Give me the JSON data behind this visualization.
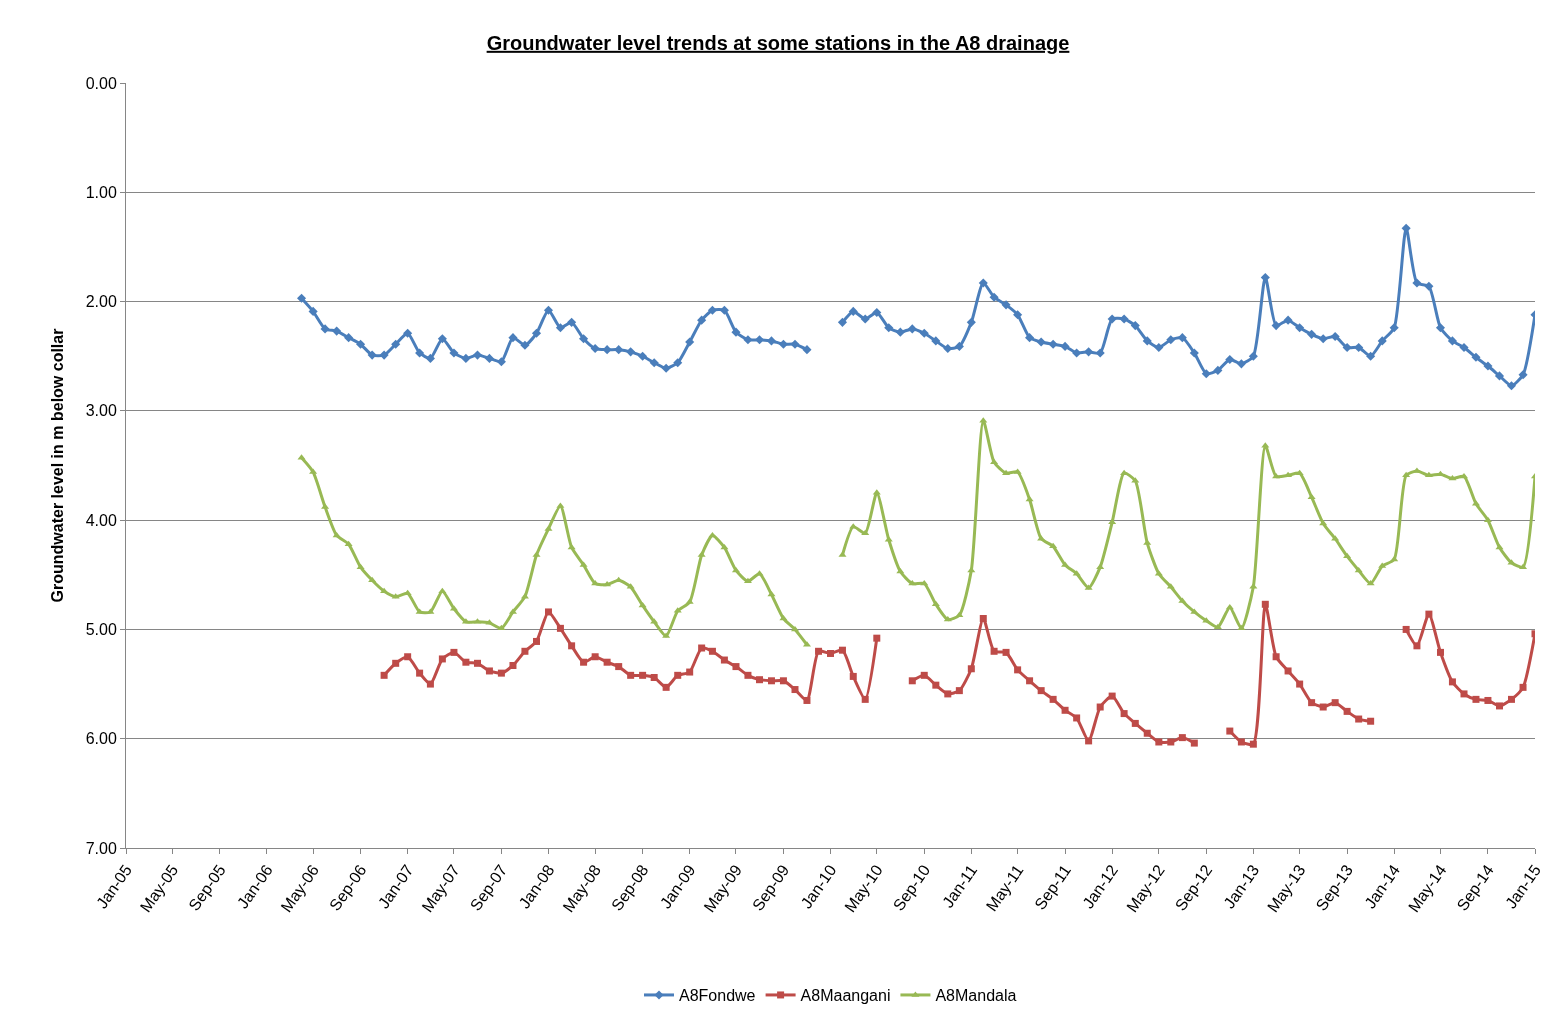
{
  "chart_data": {
    "type": "line",
    "title": "Groundwater level trends at some stations in the A8 drainage",
    "ylabel": "Groundwater level in m below collar",
    "x": [
      "2006-04",
      "2006-05",
      "2006-06",
      "2006-07",
      "2006-08",
      "2006-09",
      "2006-10",
      "2006-11",
      "2006-12",
      "2007-01",
      "2007-02",
      "2007-03",
      "2007-04",
      "2007-05",
      "2007-06",
      "2007-07",
      "2007-08",
      "2007-09",
      "2007-10",
      "2007-11",
      "2007-12",
      "2008-01",
      "2008-02",
      "2008-03",
      "2008-04",
      "2008-05",
      "2008-06",
      "2008-07",
      "2008-08",
      "2008-09",
      "2008-10",
      "2008-11",
      "2008-12",
      "2009-01",
      "2009-02",
      "2009-03",
      "2009-04",
      "2009-05",
      "2009-06",
      "2009-07",
      "2009-08",
      "2009-09",
      "2009-10",
      "2009-11",
      "2009-12",
      "2010-01",
      "2010-02",
      "2010-03",
      "2010-04",
      "2010-05",
      "2010-06",
      "2010-07",
      "2010-08",
      "2010-09",
      "2010-10",
      "2010-11",
      "2010-12",
      "2011-01",
      "2011-02",
      "2011-03",
      "2011-04",
      "2011-05",
      "2011-06",
      "2011-07",
      "2011-08",
      "2011-09",
      "2011-10",
      "2011-11",
      "2011-12",
      "2012-01",
      "2012-02",
      "2012-03",
      "2012-04",
      "2012-05",
      "2012-06",
      "2012-07",
      "2012-08",
      "2012-09",
      "2012-10",
      "2012-11",
      "2012-12",
      "2013-01",
      "2013-02",
      "2013-03",
      "2013-04",
      "2013-05",
      "2013-06",
      "2013-07",
      "2013-08",
      "2013-09",
      "2013-10",
      "2013-11",
      "2013-12",
      "2014-01",
      "2014-02",
      "2014-03",
      "2014-04",
      "2014-05",
      "2014-06",
      "2014-07",
      "2014-08",
      "2014-09",
      "2014-10",
      "2014-11",
      "2014-12",
      "2015-01"
    ],
    "series": [
      {
        "name": "A8Fondwe",
        "color": "#4a7ebb",
        "marker": "diamond",
        "values": [
          1.97,
          2.09,
          2.25,
          2.27,
          2.33,
          2.39,
          2.49,
          2.49,
          2.39,
          2.29,
          2.47,
          2.52,
          2.34,
          2.47,
          2.52,
          2.49,
          2.52,
          2.55,
          2.33,
          2.4,
          2.29,
          2.08,
          2.24,
          2.19,
          2.34,
          2.43,
          2.44,
          2.44,
          2.46,
          2.5,
          2.56,
          2.61,
          2.56,
          2.37,
          2.17,
          2.08,
          2.08,
          2.28,
          2.35,
          2.35,
          2.36,
          2.39,
          2.39,
          2.44,
          null,
          null,
          2.19,
          2.09,
          2.16,
          2.1,
          2.24,
          2.28,
          2.25,
          2.29,
          2.36,
          2.43,
          2.41,
          2.19,
          1.83,
          1.96,
          2.03,
          2.12,
          2.33,
          2.37,
          2.39,
          2.41,
          2.47,
          2.46,
          2.47,
          2.16,
          2.16,
          2.22,
          2.36,
          2.42,
          2.35,
          2.33,
          2.47,
          2.66,
          2.63,
          2.53,
          2.57,
          2.5,
          1.78,
          2.22,
          2.17,
          2.24,
          2.3,
          2.34,
          2.32,
          2.42,
          2.42,
          2.5,
          2.36,
          2.24,
          1.33,
          1.83,
          1.86,
          2.24,
          2.36,
          2.42,
          2.51,
          2.59,
          2.68,
          2.77,
          2.67,
          2.12
        ]
      },
      {
        "name": "A8Maangani",
        "color": "#be4b48",
        "marker": "square",
        "values": [
          null,
          null,
          null,
          null,
          null,
          null,
          null,
          5.42,
          5.31,
          5.25,
          5.4,
          5.5,
          5.27,
          5.21,
          5.3,
          5.31,
          5.38,
          5.4,
          5.33,
          5.2,
          5.11,
          4.84,
          4.99,
          5.15,
          5.3,
          5.25,
          5.3,
          5.34,
          5.42,
          5.42,
          5.44,
          5.53,
          5.42,
          5.39,
          5.17,
          5.2,
          5.28,
          5.34,
          5.42,
          5.46,
          5.47,
          5.47,
          5.55,
          5.65,
          5.2,
          5.22,
          5.19,
          5.43,
          5.64,
          5.08,
          null,
          null,
          5.47,
          5.42,
          5.51,
          5.59,
          5.56,
          5.36,
          4.9,
          5.2,
          5.21,
          5.37,
          5.47,
          5.56,
          5.64,
          5.74,
          5.81,
          6.02,
          5.71,
          5.61,
          5.77,
          5.86,
          5.95,
          6.03,
          6.03,
          5.99,
          6.04,
          null,
          null,
          5.93,
          6.03,
          6.05,
          4.77,
          5.25,
          5.38,
          5.5,
          5.67,
          5.71,
          5.67,
          5.75,
          5.82,
          5.84,
          null,
          null,
          5.0,
          5.15,
          4.86,
          5.21,
          5.48,
          5.59,
          5.64,
          5.65,
          5.7,
          5.64,
          5.53,
          5.04
        ]
      },
      {
        "name": "A8Mandala",
        "color": "#98b954",
        "marker": "triangle",
        "values": [
          3.43,
          3.56,
          3.88,
          4.14,
          4.22,
          4.43,
          4.55,
          4.65,
          4.7,
          4.67,
          4.84,
          4.84,
          4.65,
          4.81,
          4.93,
          4.93,
          4.94,
          4.99,
          4.84,
          4.7,
          4.32,
          4.08,
          3.87,
          4.25,
          4.41,
          4.58,
          4.59,
          4.55,
          4.61,
          4.78,
          4.93,
          5.06,
          4.83,
          4.75,
          4.32,
          4.14,
          4.25,
          4.46,
          4.56,
          4.49,
          4.68,
          4.9,
          5.0,
          5.14,
          null,
          null,
          4.32,
          4.06,
          4.12,
          3.75,
          4.18,
          4.47,
          4.58,
          4.58,
          4.77,
          4.91,
          4.87,
          4.46,
          3.09,
          3.47,
          3.57,
          3.56,
          3.81,
          4.17,
          4.24,
          4.41,
          4.49,
          4.62,
          4.43,
          4.02,
          3.57,
          3.64,
          4.21,
          4.49,
          4.61,
          4.74,
          4.84,
          4.92,
          4.98,
          4.8,
          4.99,
          4.61,
          3.32,
          3.6,
          3.59,
          3.57,
          3.79,
          4.03,
          4.17,
          4.33,
          4.46,
          4.58,
          4.42,
          4.36,
          3.59,
          3.55,
          3.59,
          3.58,
          3.62,
          3.6,
          3.85,
          4.0,
          4.25,
          4.39,
          4.43,
          3.6
        ]
      }
    ],
    "xlim": [
      "2005-01",
      "2015-01"
    ],
    "xticks": [
      {
        "value": "2005-01",
        "label": "Jan-05"
      },
      {
        "value": "2005-05",
        "label": "May-05"
      },
      {
        "value": "2005-09",
        "label": "Sep-05"
      },
      {
        "value": "2006-01",
        "label": "Jan-06"
      },
      {
        "value": "2006-05",
        "label": "May-06"
      },
      {
        "value": "2006-09",
        "label": "Sep-06"
      },
      {
        "value": "2007-01",
        "label": "Jan-07"
      },
      {
        "value": "2007-05",
        "label": "May-07"
      },
      {
        "value": "2007-09",
        "label": "Sep-07"
      },
      {
        "value": "2008-01",
        "label": "Jan-08"
      },
      {
        "value": "2008-05",
        "label": "May-08"
      },
      {
        "value": "2008-09",
        "label": "Sep-08"
      },
      {
        "value": "2009-01",
        "label": "Jan-09"
      },
      {
        "value": "2009-05",
        "label": "May-09"
      },
      {
        "value": "2009-09",
        "label": "Sep-09"
      },
      {
        "value": "2010-01",
        "label": "Jan-10"
      },
      {
        "value": "2010-05",
        "label": "May-10"
      },
      {
        "value": "2010-09",
        "label": "Sep-10"
      },
      {
        "value": "2011-01",
        "label": "Jan-11"
      },
      {
        "value": "2011-05",
        "label": "May-11"
      },
      {
        "value": "2011-09",
        "label": "Sep-11"
      },
      {
        "value": "2012-01",
        "label": "Jan-12"
      },
      {
        "value": "2012-05",
        "label": "May-12"
      },
      {
        "value": "2012-09",
        "label": "Sep-12"
      },
      {
        "value": "2013-01",
        "label": "Jan-13"
      },
      {
        "value": "2013-05",
        "label": "May-13"
      },
      {
        "value": "2013-09",
        "label": "Sep-13"
      },
      {
        "value": "2014-01",
        "label": "Jan-14"
      },
      {
        "value": "2014-05",
        "label": "May-14"
      },
      {
        "value": "2014-09",
        "label": "Sep-14"
      },
      {
        "value": "2015-01",
        "label": "Jan-15"
      }
    ],
    "ylim": [
      7,
      0
    ],
    "yticks": [
      {
        "value": 0,
        "label": "0.00"
      },
      {
        "value": 1,
        "label": "1.00"
      },
      {
        "value": 2,
        "label": "2.00"
      },
      {
        "value": 3,
        "label": "3.00"
      },
      {
        "value": 4,
        "label": "4.00"
      },
      {
        "value": 5,
        "label": "5.00"
      },
      {
        "value": 6,
        "label": "6.00"
      },
      {
        "value": 7,
        "label": "7.00"
      }
    ],
    "grid": "y",
    "legend": "bottom",
    "line_style": "solid"
  }
}
